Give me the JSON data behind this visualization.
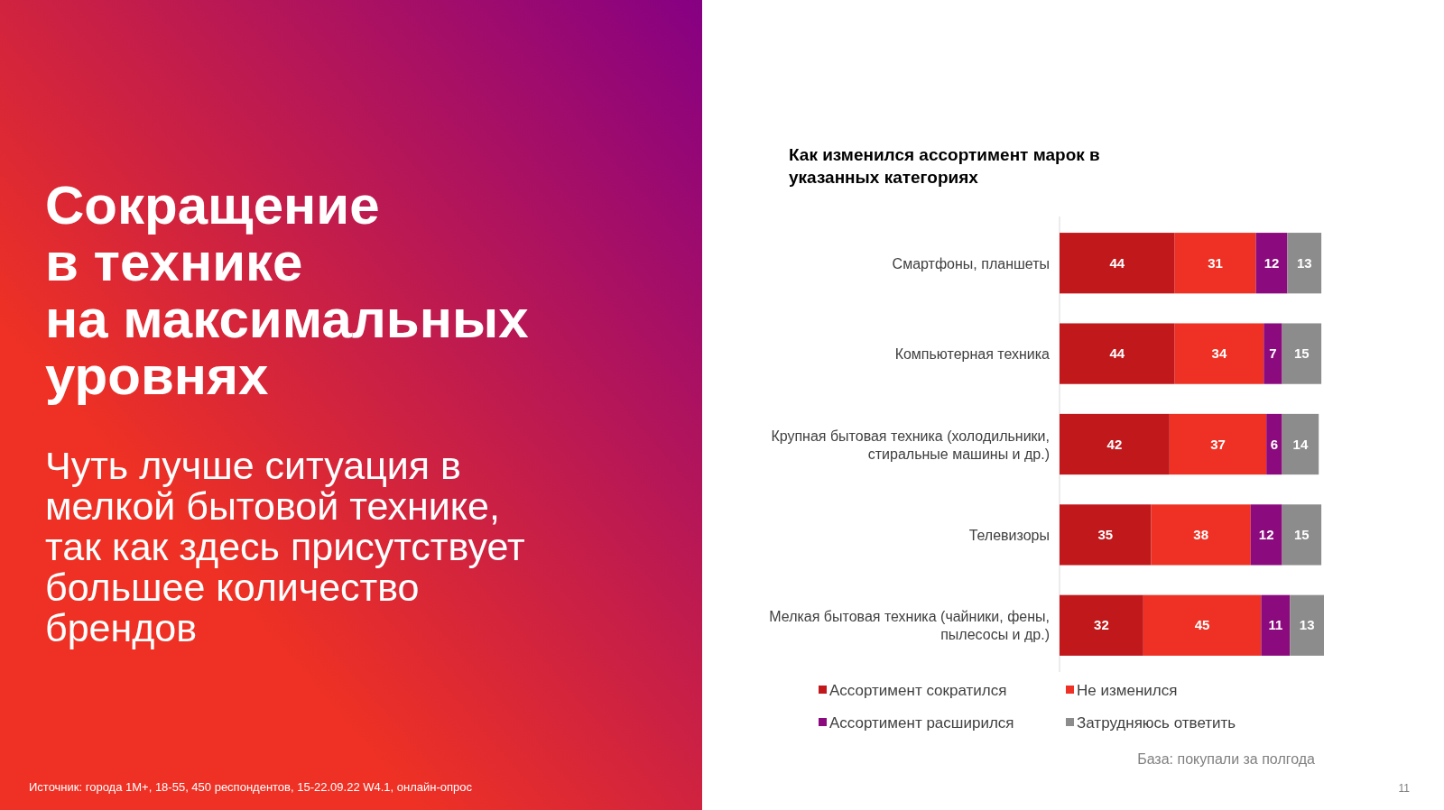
{
  "chart_data": {
    "type": "bar",
    "orientation": "horizontal",
    "stacked": true,
    "data_labels": true,
    "legend": "bottom",
    "title": "Как изменился ассортимент марок в указанных категориях",
    "categories": [
      "Смартфоны, планшеты",
      "Компьютерная техника",
      "Крупная бытовая техника (холодильники, стиральные машины и др.)",
      "Телевизоры",
      "Мелкая бытовая техника (чайники, фены, пылесосы и др.)"
    ],
    "series": [
      {
        "name": "Ассортимент сократился",
        "color": "#c0181b",
        "values": [
          44,
          44,
          42,
          35,
          32
        ]
      },
      {
        "name": "Не изменился",
        "color": "#ee3124",
        "values": [
          31,
          34,
          37,
          38,
          45
        ]
      },
      {
        "name": "Ассортимент расширился",
        "color": "#8b0a7d",
        "values": [
          12,
          7,
          6,
          12,
          11
        ]
      },
      {
        "name": "Затрудняюсь ответить",
        "color": "#8c8c8c",
        "values": [
          13,
          15,
          14,
          15,
          13
        ]
      }
    ],
    "annotations": [
      "Сокращение\nв технике\nна максимальных\nуровнях",
      "Чуть лучше ситуация в\nмелкой бытовой технике,\nтак как здесь присутствует\nбольшее количество\nбрендов",
      "База: покупали за полгода",
      "Источник: города 1M+, 18-55, 450 респондентов, 15-22.09.22 W4.1, онлайн-опрос",
      "11"
    ]
  }
}
